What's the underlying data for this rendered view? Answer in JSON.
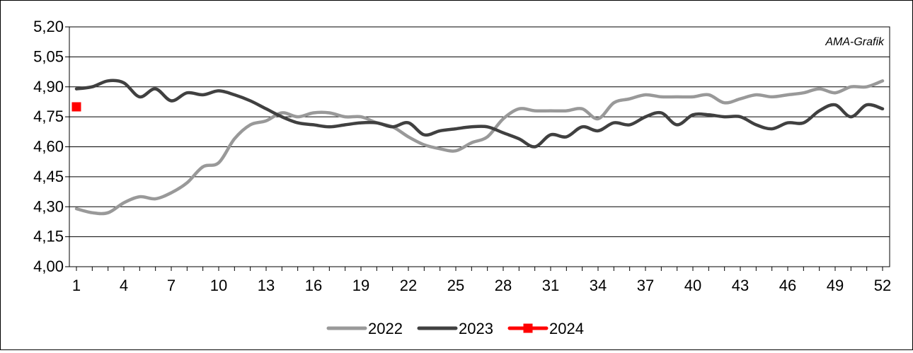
{
  "chart_data": {
    "type": "line",
    "annotation": "AMA-Grafik",
    "ylim": [
      4.0,
      5.2
    ],
    "xlim": [
      1,
      52
    ],
    "grid": true,
    "legend_position": "bottom",
    "y_ticks": [
      "4,00",
      "4,15",
      "4,30",
      "4,45",
      "4,60",
      "4,75",
      "4,90",
      "5,05",
      "5,20"
    ],
    "y_tick_values": [
      4.0,
      4.15,
      4.3,
      4.45,
      4.6,
      4.75,
      4.9,
      5.05,
      5.2
    ],
    "x_ticks": [
      "1",
      "4",
      "7",
      "10",
      "13",
      "16",
      "19",
      "22",
      "25",
      "28",
      "31",
      "34",
      "37",
      "40",
      "43",
      "46",
      "49",
      "52"
    ],
    "x_tick_values": [
      1,
      4,
      7,
      10,
      13,
      16,
      19,
      22,
      25,
      28,
      31,
      34,
      37,
      40,
      43,
      46,
      49,
      52
    ],
    "series": [
      {
        "name": "2022",
        "color": "#999999",
        "marker": "none",
        "x": [
          1,
          2,
          3,
          4,
          5,
          6,
          7,
          8,
          9,
          10,
          11,
          12,
          13,
          14,
          15,
          16,
          17,
          18,
          19,
          20,
          21,
          22,
          23,
          24,
          25,
          26,
          27,
          28,
          29,
          30,
          31,
          32,
          33,
          34,
          35,
          36,
          37,
          38,
          39,
          40,
          41,
          42,
          43,
          44,
          45,
          46,
          47,
          48,
          49,
          50,
          51,
          52
        ],
        "values": [
          4.29,
          4.27,
          4.27,
          4.32,
          4.35,
          4.34,
          4.37,
          4.42,
          4.5,
          4.52,
          4.64,
          4.71,
          4.73,
          4.77,
          4.75,
          4.77,
          4.77,
          4.75,
          4.75,
          4.72,
          4.7,
          4.65,
          4.61,
          4.59,
          4.58,
          4.62,
          4.65,
          4.74,
          4.79,
          4.78,
          4.78,
          4.78,
          4.79,
          4.74,
          4.82,
          4.84,
          4.86,
          4.85,
          4.85,
          4.85,
          4.86,
          4.82,
          4.84,
          4.86,
          4.85,
          4.86,
          4.87,
          4.89,
          4.87,
          4.9,
          4.9,
          4.93
        ]
      },
      {
        "name": "2023",
        "color": "#404040",
        "marker": "none",
        "x": [
          1,
          2,
          3,
          4,
          5,
          6,
          7,
          8,
          9,
          10,
          11,
          12,
          13,
          14,
          15,
          16,
          17,
          18,
          19,
          20,
          21,
          22,
          23,
          24,
          25,
          26,
          27,
          28,
          29,
          30,
          31,
          32,
          33,
          34,
          35,
          36,
          37,
          38,
          39,
          40,
          41,
          42,
          43,
          44,
          45,
          46,
          47,
          48,
          49,
          50,
          51,
          52
        ],
        "values": [
          4.89,
          4.9,
          4.93,
          4.92,
          4.85,
          4.89,
          4.83,
          4.87,
          4.86,
          4.88,
          4.86,
          4.83,
          4.79,
          4.75,
          4.72,
          4.71,
          4.7,
          4.71,
          4.72,
          4.72,
          4.7,
          4.72,
          4.66,
          4.68,
          4.69,
          4.7,
          4.7,
          4.67,
          4.64,
          4.6,
          4.66,
          4.65,
          4.7,
          4.68,
          4.72,
          4.71,
          4.75,
          4.77,
          4.71,
          4.76,
          4.76,
          4.75,
          4.75,
          4.71,
          4.69,
          4.72,
          4.72,
          4.78,
          4.81,
          4.75,
          4.81,
          4.79
        ]
      },
      {
        "name": "2024",
        "color": "#ff0000",
        "marker": "square",
        "x": [
          1
        ],
        "values": [
          4.8
        ]
      }
    ]
  }
}
